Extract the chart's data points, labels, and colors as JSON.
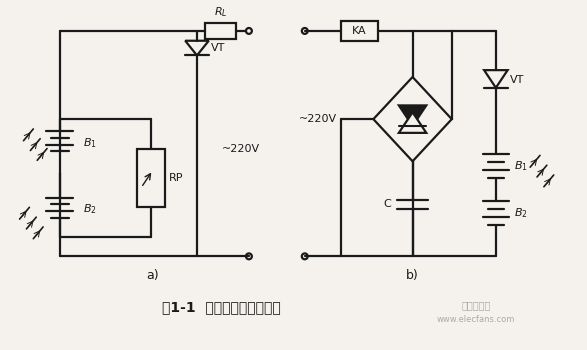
{
  "title": "图1-1  无电源光控开关电路",
  "bg_color": "#f5f2ee",
  "line_color": "#1a1a1a",
  "figsize": [
    5.87,
    3.5
  ],
  "dpi": 100,
  "watermark1": "电子发烧友",
  "watermark2": "www.elecfans.com",
  "watermark_color": "#aaaaaa"
}
